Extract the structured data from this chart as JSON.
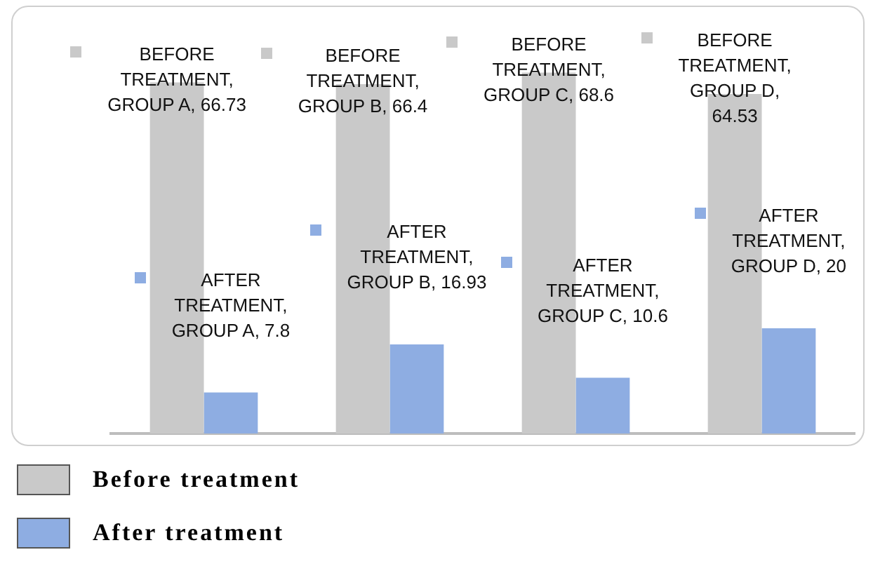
{
  "chart_data": {
    "type": "bar",
    "categories": [
      null,
      null,
      null,
      null
    ],
    "series": [
      {
        "name": "Before treatment",
        "color": "#c9c9c9",
        "values": [
          66.73,
          66.4,
          68.6,
          64.53
        ],
        "value_labels": [
          "BEFORE TREATMENT, GROUP A, 66.73",
          "BEFORE TREATMENT, GROUP B, 66.4",
          "BEFORE TREATMENT, GROUP C, 68.6",
          "BEFORE TREATMENT, GROUP D, 64.53"
        ]
      },
      {
        "name": "After treatment",
        "color": "#8eade2",
        "values": [
          7.8,
          16.93,
          10.6,
          20
        ],
        "value_labels": [
          "AFTER TREATMENT, GROUP A, 7.8",
          "AFTER TREATMENT, GROUP B, 16.93",
          "AFTER TREATMENT, GROUP C, 10.6",
          "AFTER TREATMENT, GROUP D, 20"
        ]
      }
    ],
    "legend": "bottom",
    "grid": false
  }
}
